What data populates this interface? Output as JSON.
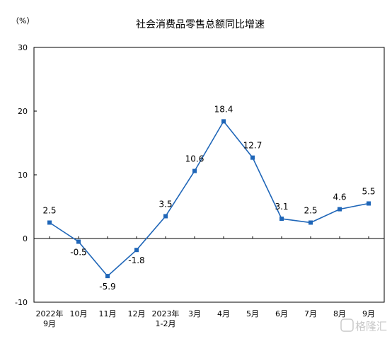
{
  "chart_data": {
    "type": "line",
    "title": "社会消费品零售总额同比增速",
    "unit": "（%）",
    "categories": [
      [
        "2022年",
        "9月"
      ],
      [
        "10月"
      ],
      [
        "11月"
      ],
      [
        "12月"
      ],
      [
        "2023年",
        "1-2月"
      ],
      [
        "3月"
      ],
      [
        "4月"
      ],
      [
        "5月"
      ],
      [
        "6月"
      ],
      [
        "7月"
      ],
      [
        "8月"
      ],
      [
        "9月"
      ]
    ],
    "values": [
      2.5,
      -0.5,
      -5.9,
      -1.8,
      3.5,
      10.6,
      18.4,
      12.7,
      3.1,
      2.5,
      4.6,
      5.5
    ],
    "data_labels": [
      "2.5",
      "-0.5",
      "-5.9",
      "-1.8",
      "3.5",
      "10.6",
      "18.4",
      "12.7",
      "3.1",
      "2.5",
      "4.6",
      "5.5"
    ],
    "ylim": [
      -10,
      30
    ],
    "yticks": [
      -10,
      0,
      10,
      20,
      30
    ],
    "series_color": "#1f66b8",
    "grid": false,
    "legend": "none"
  },
  "watermark": {
    "text": "格隆汇",
    "icon": "glh-logo-icon"
  }
}
